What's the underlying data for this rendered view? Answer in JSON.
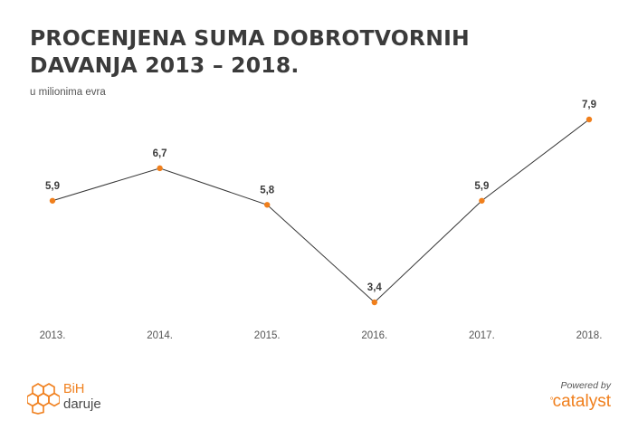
{
  "title_line1": "PROCENJENA SUMA DOBROTVORNIH",
  "title_line2": "DAVANJA 2013 – 2018.",
  "subtitle": "u milionima evra",
  "footer": {
    "logo_bih": "BiH",
    "logo_daruje": "daruje",
    "powered_by": "Powered by",
    "catalyst": "catalyst"
  },
  "colors": {
    "accent": "#f07f1c",
    "line": "#333333",
    "text": "#3b3b3b"
  },
  "chart_data": {
    "type": "line",
    "title": "PROCENJENA SUMA DOBROTVORNIH DAVANJA 2013 – 2018.",
    "subtitle": "u milionima evra",
    "categories": [
      "2013.",
      "2014.",
      "2015.",
      "2016.",
      "2017.",
      "2018."
    ],
    "values": [
      5.9,
      6.7,
      5.8,
      3.4,
      5.9,
      7.9
    ],
    "value_labels": [
      "5,9",
      "6,7",
      "5,8",
      "3,4",
      "5,9",
      "7,9"
    ],
    "xlabel": "",
    "ylabel": "",
    "grid": false,
    "legend": "none"
  }
}
